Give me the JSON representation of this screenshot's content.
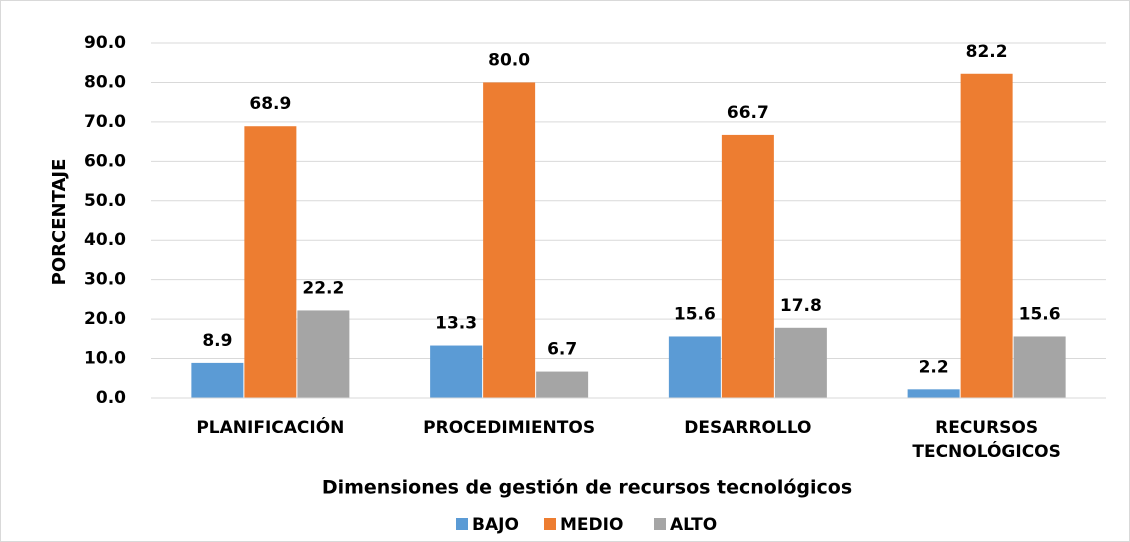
{
  "chart_data": {
    "type": "bar",
    "x_label": "Dimensiones de gestión de recursos tecnológicos",
    "y_label": "PORCENTAJE",
    "categories": [
      "PLANIFICACIÓN",
      "PROCEDIMIENTOS",
      "DESARROLLO",
      "RECURSOS TECNOLÓGICOS"
    ],
    "series": [
      {
        "name": "BAJO",
        "color": "#5b9bd5",
        "values": [
          8.9,
          13.3,
          15.6,
          2.2
        ],
        "value_labels": [
          "8.9",
          "13.3",
          "15.6",
          "2.2"
        ]
      },
      {
        "name": "MEDIO",
        "color": "#ed7d31",
        "values": [
          68.9,
          80,
          66.7,
          82.2
        ],
        "value_labels": [
          "68.9",
          "80.0",
          "66.7",
          "82.2"
        ]
      },
      {
        "name": "ALTO",
        "color": "#a5a5a5",
        "values": [
          22.2,
          6.7,
          17.8,
          15.6
        ],
        "value_labels": [
          "22.2",
          "6.7",
          "17.8",
          "15.6"
        ]
      }
    ],
    "ylim": [
      0,
      90
    ],
    "yticks": [
      {
        "value": 0,
        "label": "0.0"
      },
      {
        "value": 10,
        "label": "10.0"
      },
      {
        "value": 20,
        "label": "20.0"
      },
      {
        "value": 30,
        "label": "30.0"
      },
      {
        "value": 40,
        "label": "40.0"
      },
      {
        "value": 50,
        "label": "50.0"
      },
      {
        "value": 60,
        "label": "60.0"
      },
      {
        "value": 70,
        "label": "70.0"
      },
      {
        "value": 80,
        "label": "80.0"
      },
      {
        "value": 90,
        "label": "90.0"
      }
    ],
    "grid": true,
    "legend": "bottom"
  }
}
